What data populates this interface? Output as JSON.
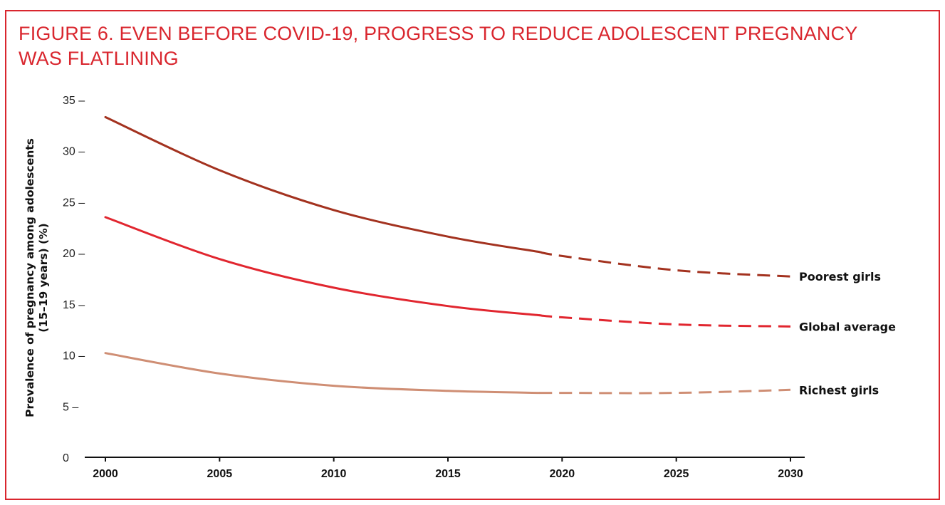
{
  "figure": {
    "title": "FIGURE 6. EVEN BEFORE COVID-19, PROGRESS TO REDUCE ADOLESCENT PREGNANCY WAS FLATLINING"
  },
  "colors": {
    "frame": "#d9262e",
    "title": "#d9262e",
    "poorest": "#a3321f",
    "global": "#e1262f",
    "richest": "#cf8e74",
    "axis": "#111111"
  },
  "chart_data": {
    "type": "line",
    "title": "FIGURE 6. EVEN BEFORE COVID-19, PROGRESS TO REDUCE ADOLESCENT PREGNANCY WAS FLATLINING",
    "ylabel_lines": [
      "Prevalence of pregnancy among adolescents",
      "(15–19 years) (%)"
    ],
    "xlabel": "",
    "xlim": [
      2000,
      2030
    ],
    "ylim": [
      0,
      35
    ],
    "xticks": [
      "2000",
      "2005",
      "2010",
      "2015",
      "2020",
      "2025",
      "2030"
    ],
    "yticks": [
      "0",
      "5 –",
      "10 –",
      "15 –",
      "20 –",
      "25 –",
      "30 –",
      "35 –"
    ],
    "grid": false,
    "legend": "inline labels at right end of lines",
    "observed_until": 2019,
    "series": [
      {
        "name": "Poorest girls",
        "color": "#a3321f",
        "observed": [
          [
            2000,
            33.3
          ],
          [
            2005,
            28.1
          ],
          [
            2010,
            24.2
          ],
          [
            2015,
            21.6
          ],
          [
            2019,
            20.1
          ]
        ],
        "projected": [
          [
            2019,
            20.1
          ],
          [
            2020,
            19.7
          ],
          [
            2025,
            18.3
          ],
          [
            2030,
            17.7
          ]
        ]
      },
      {
        "name": "Global average",
        "color": "#e1262f",
        "observed": [
          [
            2000,
            23.5
          ],
          [
            2005,
            19.4
          ],
          [
            2010,
            16.6
          ],
          [
            2015,
            14.8
          ],
          [
            2019,
            13.9
          ]
        ],
        "projected": [
          [
            2019,
            13.9
          ],
          [
            2020,
            13.7
          ],
          [
            2025,
            13.0
          ],
          [
            2030,
            12.8
          ]
        ]
      },
      {
        "name": "Richest girls",
        "color": "#cf8e74",
        "observed": [
          [
            2000,
            10.2
          ],
          [
            2005,
            8.2
          ],
          [
            2010,
            7.0
          ],
          [
            2015,
            6.5
          ],
          [
            2019,
            6.3
          ]
        ],
        "projected": [
          [
            2019,
            6.3
          ],
          [
            2020,
            6.3
          ],
          [
            2025,
            6.3
          ],
          [
            2030,
            6.6
          ]
        ]
      }
    ]
  }
}
